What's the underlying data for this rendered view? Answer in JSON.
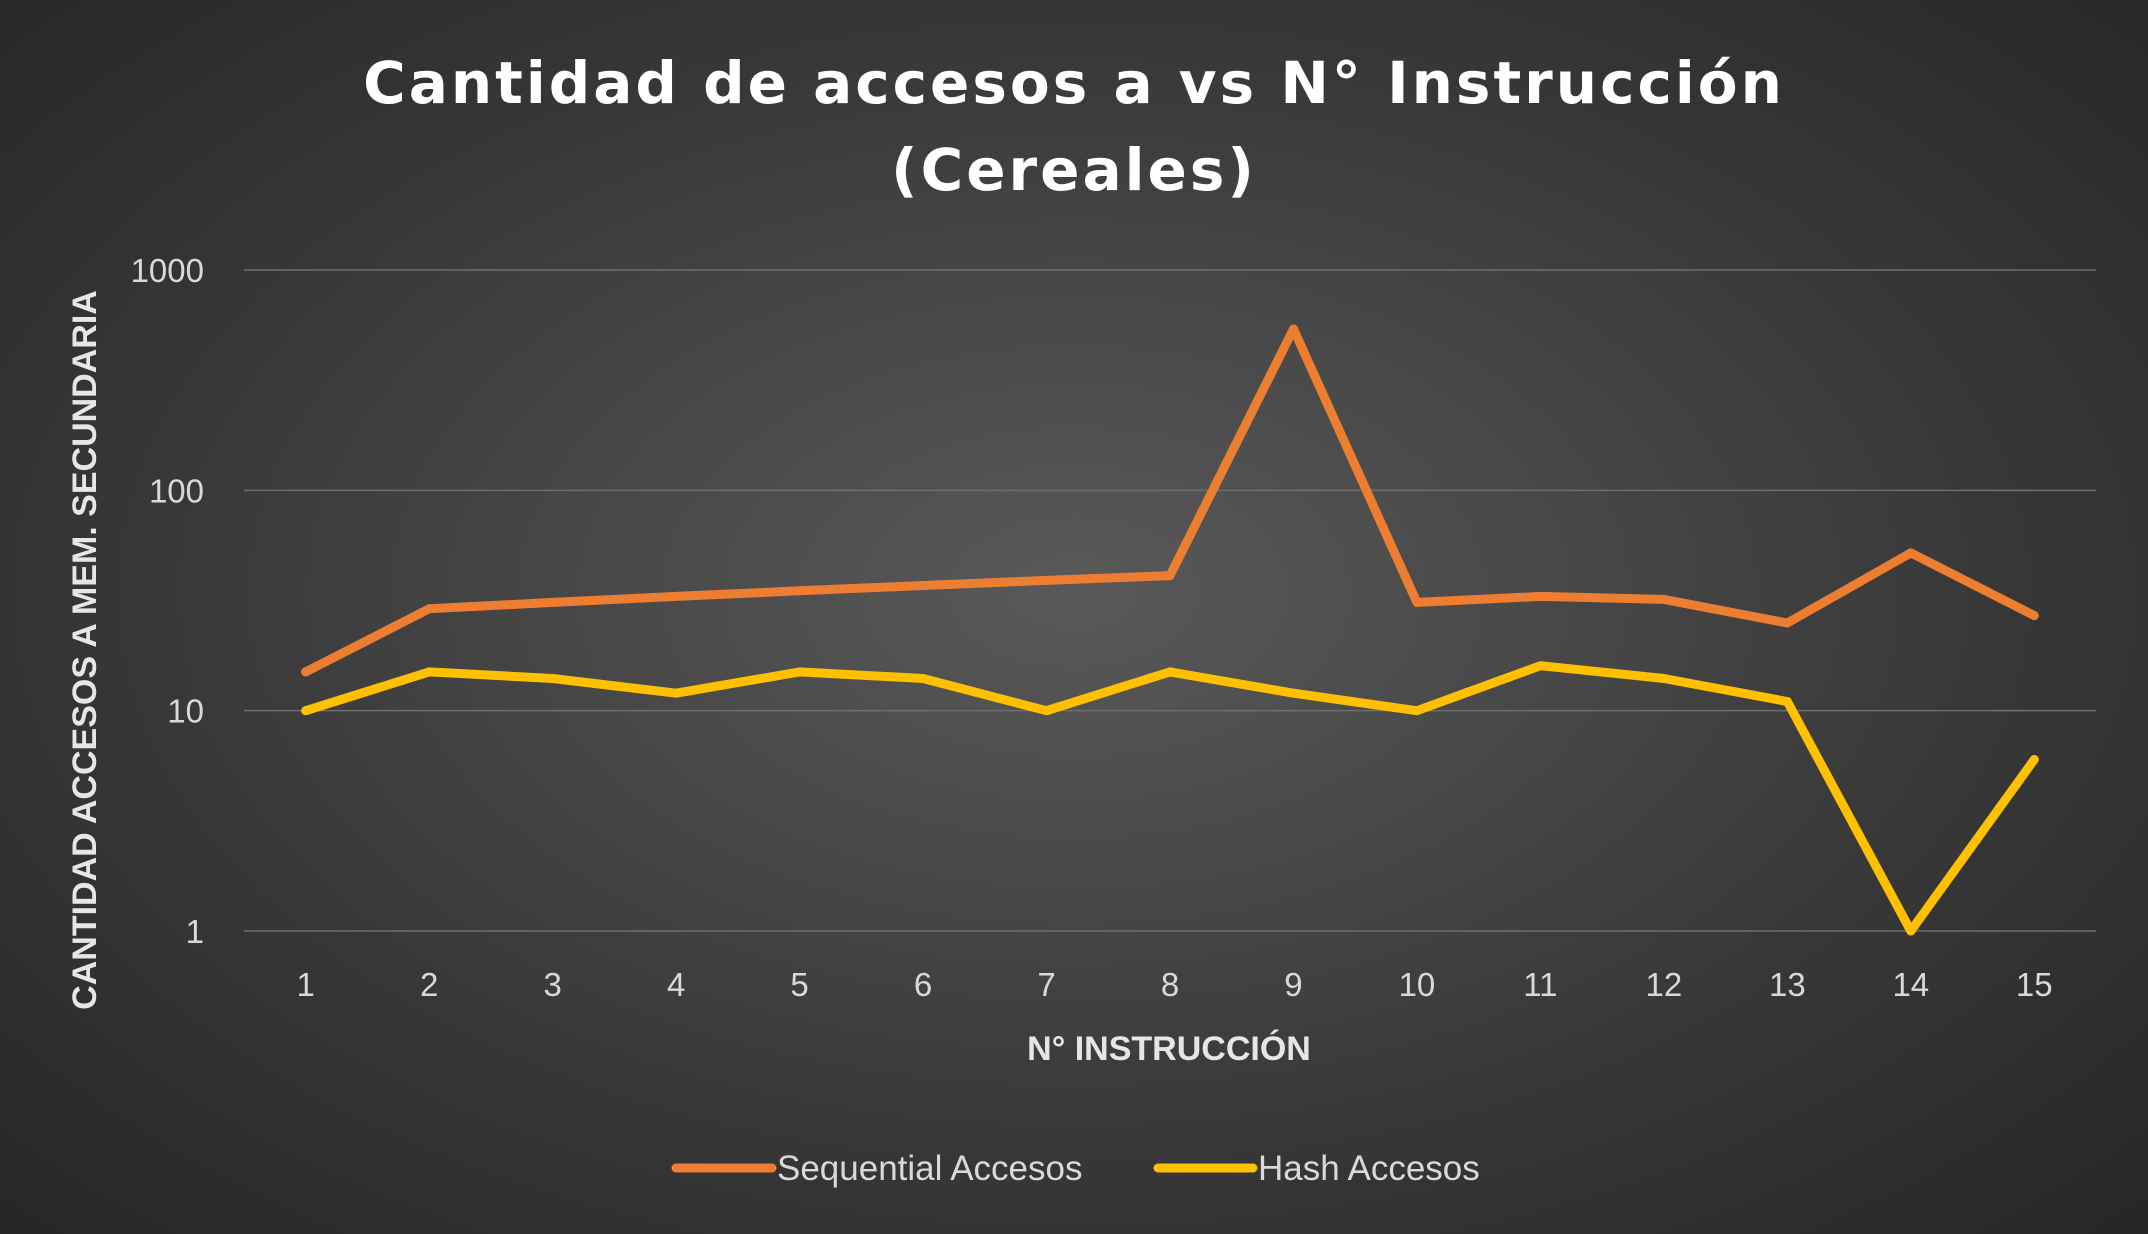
{
  "chart_data": {
    "type": "line",
    "title_lines": [
      "Cantidad de accesos a vs N° Instrucción",
      "(Cereales)"
    ],
    "xlabel": "N° INSTRUCCIÓN",
    "ylabel": "CANTIDAD ACCESOS A MEM. SECUNDARIA",
    "y_scale": "log",
    "ylim": [
      1,
      1000
    ],
    "y_ticks": [
      "1",
      "10",
      "100",
      "1000"
    ],
    "categories": [
      "1",
      "2",
      "3",
      "4",
      "5",
      "6",
      "7",
      "8",
      "9",
      "10",
      "11",
      "12",
      "13",
      "14",
      "15"
    ],
    "grid": true,
    "legend_position": "bottom",
    "series": [
      {
        "name": "Sequential Accesos",
        "color": "#ed7d31",
        "values": [
          15,
          29,
          31,
          33,
          35,
          37,
          39,
          41,
          540,
          31,
          33,
          32,
          25,
          52,
          27
        ]
      },
      {
        "name": "Hash Accesos",
        "color": "#ffc000",
        "values": [
          10,
          15,
          14,
          12,
          15,
          14,
          10,
          15,
          12,
          10,
          16,
          14,
          11,
          1,
          6
        ]
      }
    ]
  }
}
